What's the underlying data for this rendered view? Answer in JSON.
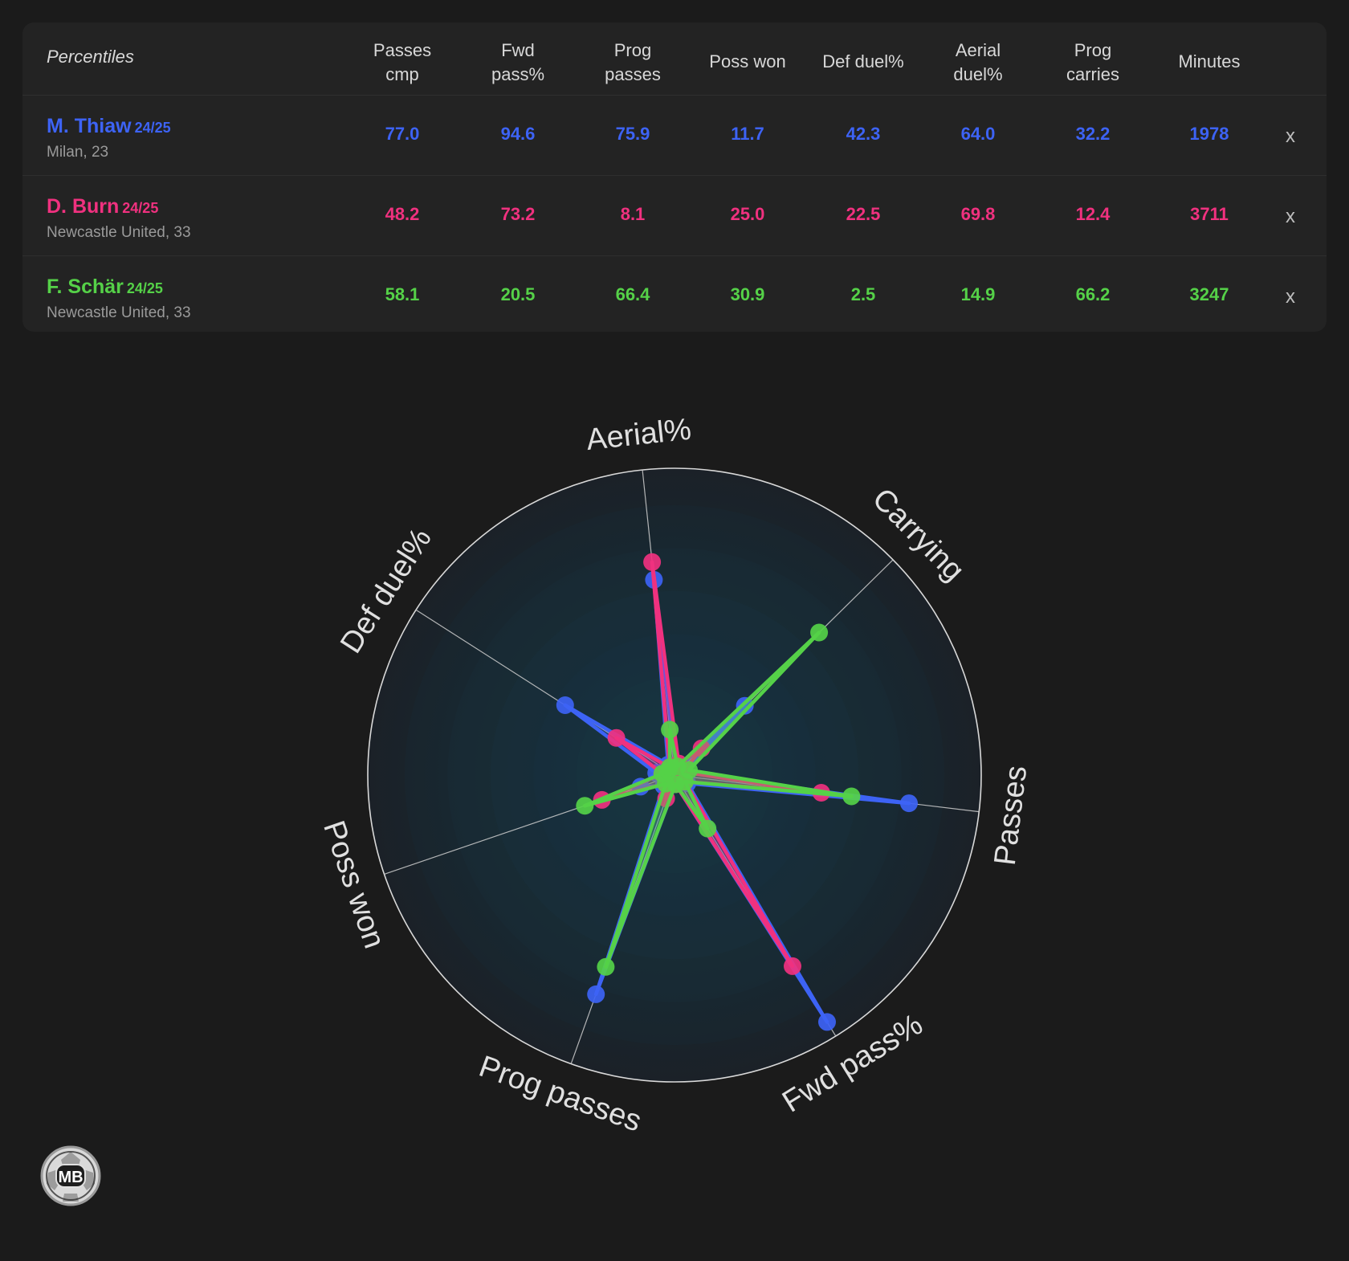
{
  "table": {
    "title": "Percentiles",
    "columns": [
      {
        "key": "passes_cmp",
        "line1": "Passes",
        "line2": "cmp"
      },
      {
        "key": "fwd_pass",
        "line1": "Fwd",
        "line2": "pass%"
      },
      {
        "key": "prog_passes",
        "line1": "Prog",
        "line2": "passes"
      },
      {
        "key": "poss_won",
        "line1": "Poss won",
        "line2": ""
      },
      {
        "key": "def_duel",
        "line1": "Def duel%",
        "line2": ""
      },
      {
        "key": "aerial_duel",
        "line1": "Aerial",
        "line2": "duel%"
      },
      {
        "key": "prog_carries",
        "line1": "Prog",
        "line2": "carries"
      },
      {
        "key": "minutes",
        "line1": "Minutes",
        "line2": ""
      }
    ],
    "remove_label": "x",
    "players": [
      {
        "name": "M. Thiaw",
        "season": "24/25",
        "club": "Milan, 23",
        "color": "#3d63f5",
        "values": [
          "77.0",
          "94.6",
          "75.9",
          "11.7",
          "42.3",
          "64.0",
          "32.2",
          "1978"
        ]
      },
      {
        "name": "D. Burn",
        "season": "24/25",
        "club": "Newcastle United, 33",
        "color": "#f0317f",
        "values": [
          "48.2",
          "73.2",
          "8.1",
          "25.0",
          "22.5",
          "69.8",
          "12.4",
          "3711"
        ]
      },
      {
        "name": "F. Schär",
        "season": "24/25",
        "club": "Newcastle United, 33",
        "color": "#55d148",
        "values": [
          "58.1",
          "20.5",
          "66.4",
          "30.9",
          "2.5",
          "14.9",
          "66.2",
          "3247"
        ]
      }
    ]
  },
  "chart_data": {
    "type": "radar",
    "axes": [
      "Aerial%",
      "Carrying",
      "Passes",
      "Fwd pass%",
      "Prog passes",
      "Poss won",
      "Def duel%"
    ],
    "range": [
      0,
      100
    ],
    "series": [
      {
        "name": "M. Thiaw",
        "color": "#3d63f5",
        "outer": [
          64.0,
          32.2,
          77.0,
          94.6,
          75.9,
          11.7,
          42.3
        ],
        "inner": [
          2,
          3,
          5,
          3,
          5,
          6,
          4
        ]
      },
      {
        "name": "D. Burn",
        "color": "#f0317f",
        "outer": [
          69.8,
          12.4,
          48.2,
          73.2,
          8.1,
          25.0,
          22.5
        ],
        "inner": [
          4,
          3,
          4,
          3,
          4,
          4,
          3
        ]
      },
      {
        "name": "F. Schär",
        "color": "#55d148",
        "outer": [
          14.9,
          66.2,
          58.1,
          20.5,
          66.4,
          30.9,
          2.5
        ],
        "inner": [
          3,
          5,
          4,
          3,
          4,
          4,
          3
        ]
      }
    ]
  },
  "logo": {
    "text": "MB"
  }
}
